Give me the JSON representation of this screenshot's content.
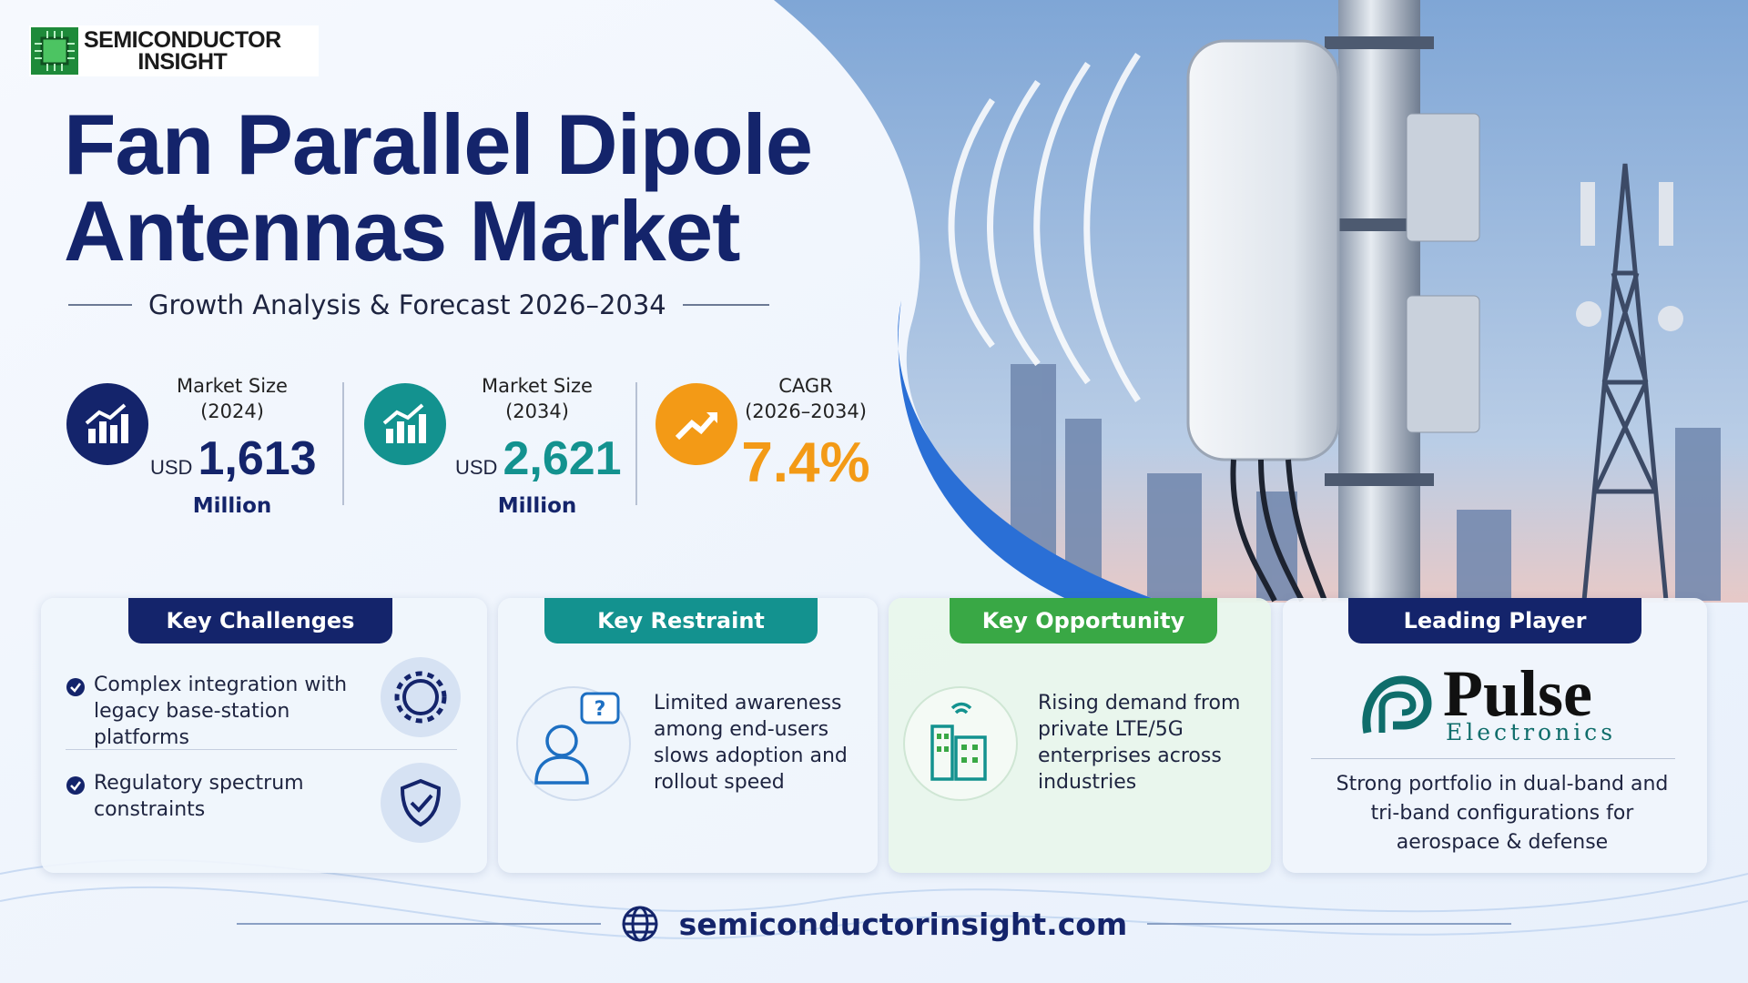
{
  "brand": {
    "line1": "SEMICONDUCTOR",
    "line2": "INSIGHT"
  },
  "header": {
    "title_line1": "Fan Parallel Dipole",
    "title_line2": "Antennas Market",
    "subtitle": "Growth Analysis & Forecast 2026–2034"
  },
  "stats": [
    {
      "label": "Market Size",
      "period": "(2024)",
      "prefix": "USD",
      "value": "1,613",
      "unit": "Million"
    },
    {
      "label": "Market Size",
      "period": "(2034)",
      "prefix": "USD",
      "value": "2,621",
      "unit": "Million"
    },
    {
      "label": "CAGR",
      "period": "(2026–2034)",
      "value": "7.4%"
    }
  ],
  "cards": {
    "challenges": {
      "title": "Key Challenges",
      "items": [
        "Complex integration with legacy base-station platforms",
        "Regulatory spectrum constraints"
      ]
    },
    "restraint": {
      "title": "Key Restraint",
      "text": "Limited awareness among end-users slows adoption and rollout speed"
    },
    "opportunity": {
      "title": "Key Opportunity",
      "text": "Rising demand from private LTE/5G enterprises across industries"
    },
    "player": {
      "title": "Leading Player",
      "logo_name": "Pulse",
      "logo_sub": "Electronics",
      "text": "Strong portfolio in dual-band and tri-band configurations for aerospace & defense"
    }
  },
  "footer": {
    "website": "semiconductorinsight.com"
  }
}
